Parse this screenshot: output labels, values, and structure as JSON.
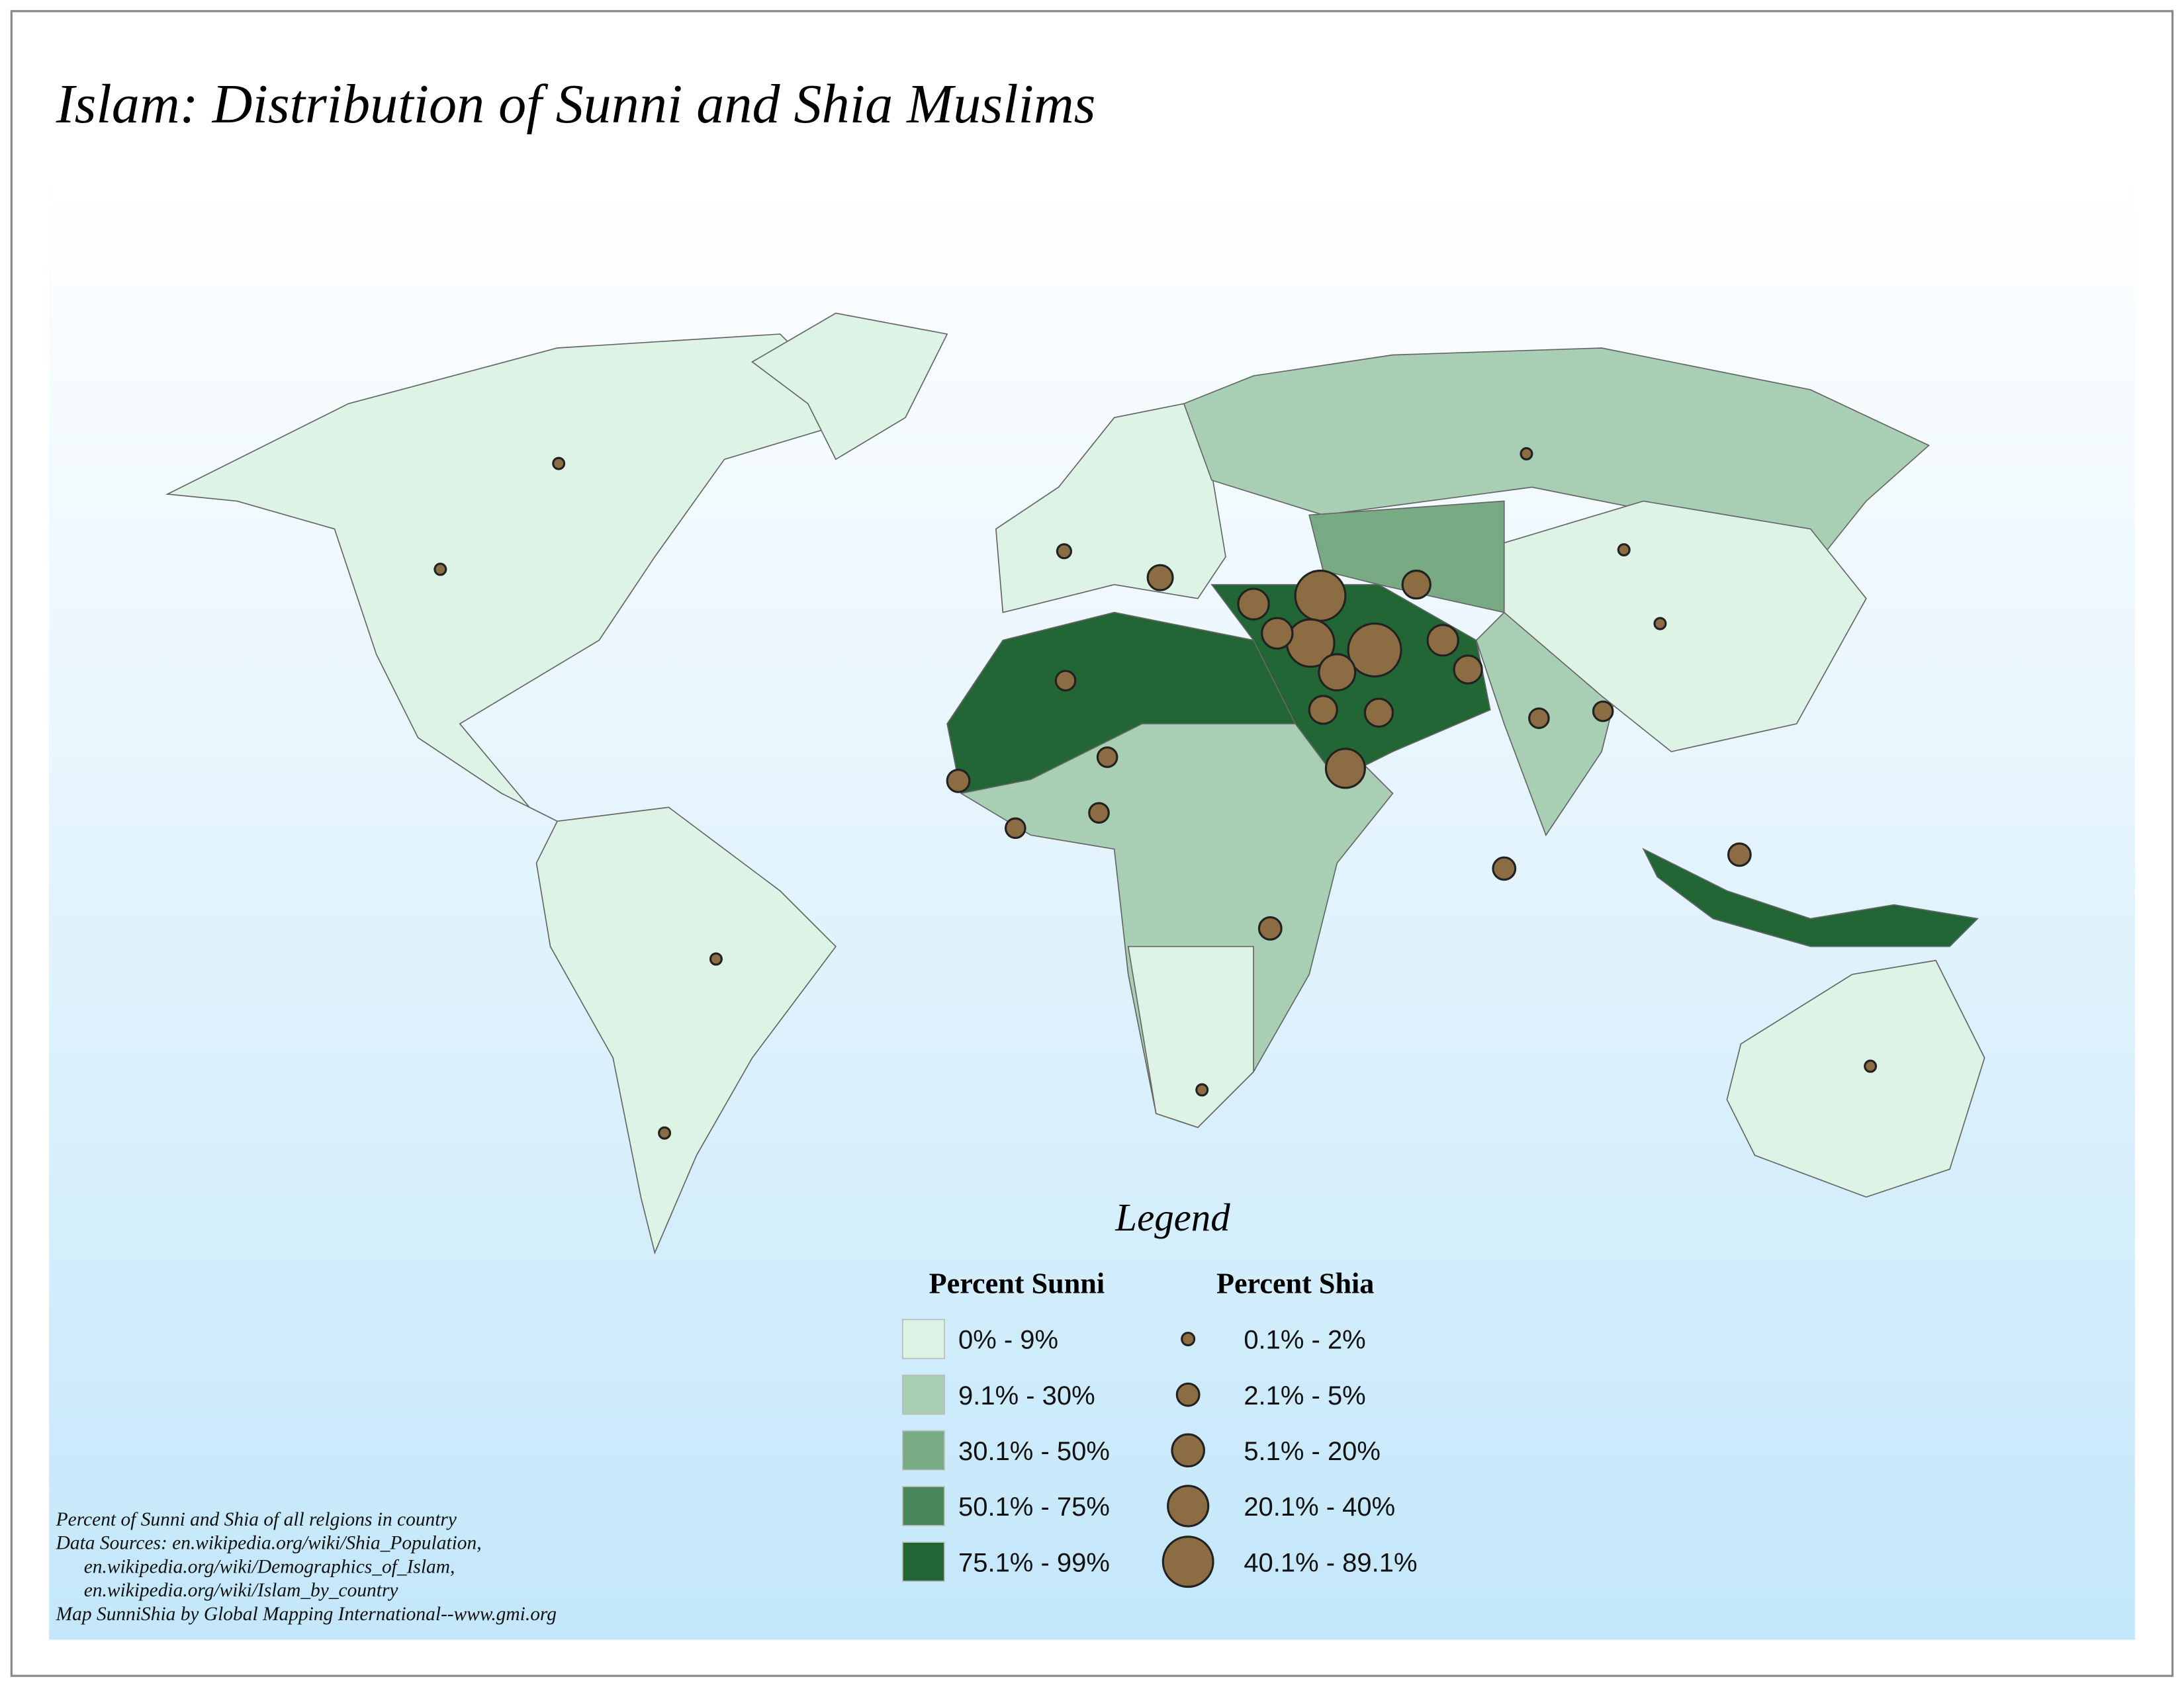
{
  "title": "Islam:  Distribution of Sunni and Shia Muslims",
  "legend": {
    "title": "Legend",
    "sunni": {
      "heading": "Percent Sunni",
      "items": [
        {
          "label": "0% - 9%",
          "color": "#ddf3e6"
        },
        {
          "label": "9.1% - 30%",
          "color": "#a8cfb4"
        },
        {
          "label": "30.1% - 50%",
          "color": "#78aa84"
        },
        {
          "label": "50.1% - 75%",
          "color": "#4a875a"
        },
        {
          "label": "75.1% - 99%",
          "color": "#226636"
        }
      ]
    },
    "shia": {
      "heading": "Percent Shia",
      "items": [
        {
          "label": "0.1% - 2%"
        },
        {
          "label": "2.1% - 5%"
        },
        {
          "label": "5.1% - 20%"
        },
        {
          "label": "20.1% - 40%"
        },
        {
          "label": "40.1% - 89.1%"
        }
      ]
    }
  },
  "notes": [
    "Percent of Sunni and Shia of all relgions in country",
    "Data Sources:  en.wikipedia.org/wiki/Shia_Population,",
    "en.wikipedia.org/wiki/Demographics_of_Islam,",
    "en.wikipedia.org/wiki/Islam_by_country",
    "Map SunniShia by Global Mapping International--www.gmi.org"
  ]
}
